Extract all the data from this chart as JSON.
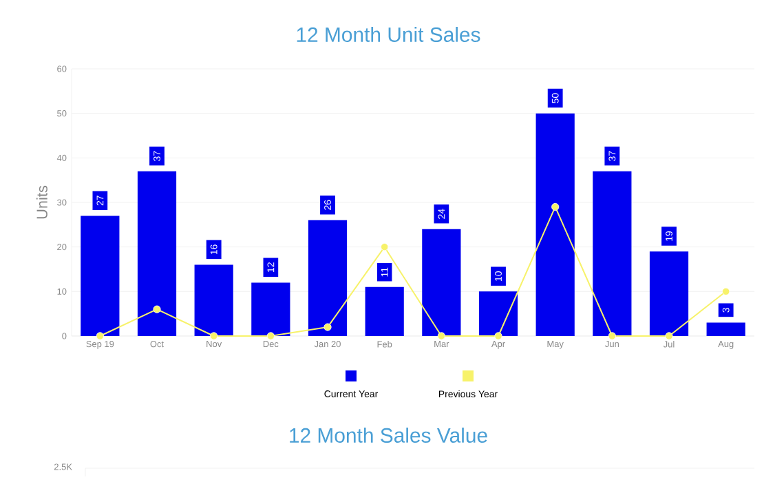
{
  "chart_data": {
    "type": "bar",
    "title": "12 Month Unit Sales",
    "ylabel": "Units",
    "categories": [
      "Sep 19",
      "Oct",
      "Nov",
      "Dec",
      "Jan 20",
      "Feb",
      "Mar",
      "Apr",
      "May",
      "Jun",
      "Jul",
      "Aug"
    ],
    "series": [
      {
        "name": "Current Year",
        "color": "#0000ee",
        "values": [
          27,
          37,
          16,
          12,
          26,
          11,
          24,
          10,
          50,
          37,
          19,
          3
        ],
        "value_labels": [
          "27",
          "37",
          "16",
          "12",
          "26",
          "11",
          "24",
          "10",
          "50",
          "37",
          "19",
          "3"
        ]
      },
      {
        "name": "Previous Year",
        "type": "line",
        "color": "#f7f26a",
        "marker": "circle",
        "values": [
          0,
          6,
          0,
          0,
          2,
          20,
          0,
          0,
          29,
          0,
          0,
          10
        ]
      }
    ],
    "ylim": [
      0,
      60
    ],
    "yticks": [
      0,
      10,
      20,
      30,
      40,
      50,
      60
    ],
    "grid": "y",
    "legend": "bottom",
    "annotations": [
      "12 Month Sales Value",
      "2.5K"
    ]
  }
}
